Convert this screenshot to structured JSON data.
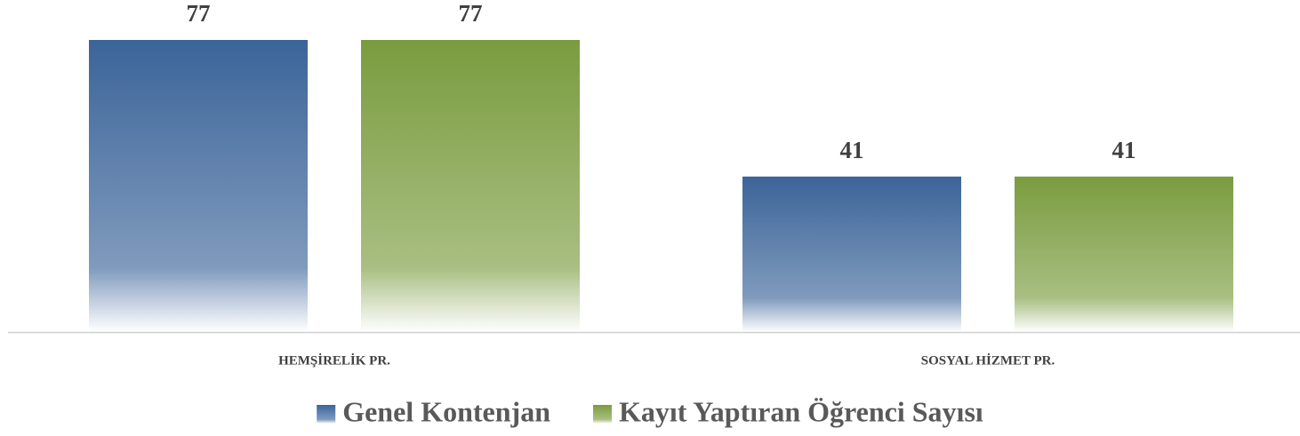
{
  "chart_data": {
    "type": "bar",
    "categories": [
      "HEMŞİRELİK PR.",
      "SOSYAL HİZMET PR."
    ],
    "series": [
      {
        "name": "Genel Kontenjan",
        "color": "#3b6499",
        "values": [
          77,
          41
        ]
      },
      {
        "name": "Kayıt Yaptıran Öğrenci Sayısı",
        "color": "#7a9c3f",
        "values": [
          77,
          41
        ]
      }
    ],
    "legend": "bottom"
  }
}
